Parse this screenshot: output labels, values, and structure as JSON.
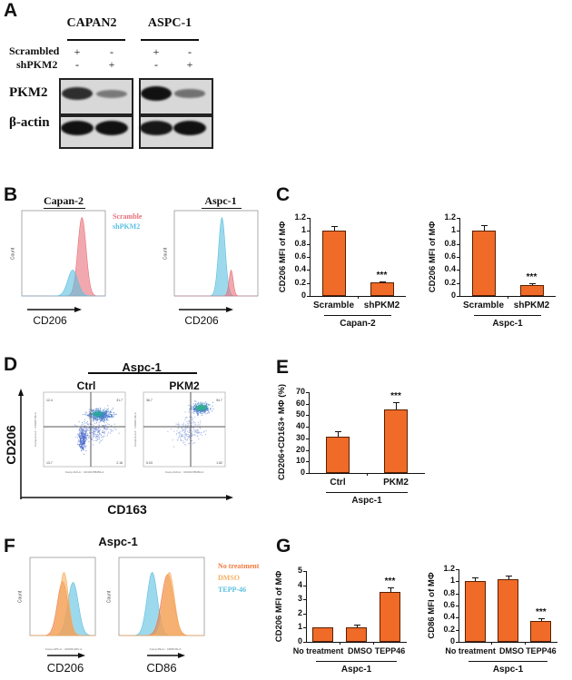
{
  "panels": {
    "A": {
      "label": "A",
      "cell_lines": [
        "CAPAN2",
        "ASPC-1"
      ],
      "row_labels": [
        "Scrambled",
        "shPKM2"
      ],
      "scrambled": [
        "+",
        "-",
        "+",
        "-"
      ],
      "shPKM2": [
        "-",
        "+",
        "-",
        "+"
      ],
      "blots": [
        "PKM2",
        "β-actin"
      ],
      "band_intensity": {
        "PKM2": [
          0.8,
          0.3,
          1.0,
          0.35
        ],
        "beta_actin": [
          1.0,
          1.0,
          0.95,
          1.0
        ]
      }
    },
    "B": {
      "label": "B",
      "titles": [
        "Capan-2",
        "Aspc-1"
      ],
      "legend": [
        "Scramble",
        "shPKM2"
      ],
      "xlabel": "CD206",
      "ylabel": "Count",
      "colors": {
        "Scramble": "#e8707a",
        "shPKM2": "#5bc0e0"
      }
    },
    "C": {
      "label": "C"
    },
    "D": {
      "label": "D",
      "title": "Aspc-1",
      "conditions": [
        "Ctrl",
        "PKM2"
      ],
      "ylabel": "CD206",
      "xlabel": "CD163",
      "plot_xlabel": "Comp-FL6-A :: CD163 PB450-A",
      "plot_ylabel": "Comp-FL3-A :: CD206 PE-A",
      "quadrants": [
        {
          "Q5": "12.4",
          "Q6": "31.7",
          "Q8": "13.7",
          "Q7": "2.16"
        },
        {
          "Q5": "36.7",
          "Q6": "54.7",
          "Q8": "5.03",
          "Q7": "1.52"
        }
      ]
    },
    "E": {
      "label": "E"
    },
    "F": {
      "label": "F",
      "title": "Aspc-1",
      "legend": [
        "No treatment",
        "DMSO",
        "TEPP-46"
      ],
      "xlabels": [
        "CD206",
        "CD86"
      ],
      "plot_xlabels": [
        "Comp-APC-A :: CD206 APC-A",
        "Comp-PE-A :: CD86 PE-A"
      ],
      "ylabel": "Count",
      "colors": {
        "No treatment": "#f07a40",
        "DMSO": "#f5b060",
        "TEPP-46": "#5bc0e0"
      }
    },
    "G": {
      "label": "G"
    }
  },
  "chart_data": [
    {
      "id": "C1",
      "type": "bar",
      "categories": [
        "Scramble",
        "shPKM2"
      ],
      "values": [
        1.0,
        0.21
      ],
      "errors": [
        0.08,
        0.02
      ],
      "significance": [
        "",
        "***"
      ],
      "ylabel": "CD206 MFI of MΦ",
      "group_label": "Capan-2",
      "ylim": [
        0,
        1.2
      ],
      "yticks": [
        "0",
        "0.2",
        "0.4",
        "0.6",
        "0.8",
        "1",
        "1.2"
      ],
      "color": "#f06a28"
    },
    {
      "id": "C2",
      "type": "bar",
      "categories": [
        "Scramble",
        "shPKM2"
      ],
      "values": [
        1.0,
        0.17
      ],
      "errors": [
        0.09,
        0.02
      ],
      "significance": [
        "",
        "***"
      ],
      "ylabel": "CD206 MFI of MΦ",
      "group_label": "Aspc-1",
      "ylim": [
        0,
        1.2
      ],
      "yticks": [
        "0",
        "0.2",
        "0.4",
        "0.6",
        "0.8",
        "1",
        "1.2"
      ],
      "color": "#f06a28"
    },
    {
      "id": "E",
      "type": "bar",
      "categories": [
        "Ctrl",
        "PKM2"
      ],
      "values": [
        31.5,
        55
      ],
      "errors": [
        5,
        6
      ],
      "significance": [
        "",
        "***"
      ],
      "ylabel": "CD206+CD163+ MΦ (%)",
      "group_label": "Aspc-1",
      "ylim": [
        0,
        70
      ],
      "yticks": [
        "0",
        "10",
        "20",
        "30",
        "40",
        "50",
        "60",
        "70"
      ],
      "color": "#f06a28"
    },
    {
      "id": "G1",
      "type": "bar",
      "categories": [
        "No treatment",
        "DMSO",
        "TEPP46"
      ],
      "values": [
        1.0,
        1.03,
        3.5
      ],
      "errors": [
        0.03,
        0.18,
        0.35
      ],
      "significance": [
        "",
        "",
        "***"
      ],
      "ylabel": "CD206 MFI of MΦ",
      "group_label": "Aspc-1",
      "ylim": [
        0,
        5
      ],
      "yticks": [
        "0",
        "1",
        "2",
        "3",
        "4",
        "5"
      ],
      "color": "#f06a28"
    },
    {
      "id": "G2",
      "type": "bar",
      "categories": [
        "No treatment",
        "DMSO",
        "TEPP46"
      ],
      "values": [
        1.0,
        1.03,
        0.35
      ],
      "errors": [
        0.06,
        0.07,
        0.04
      ],
      "significance": [
        "",
        "",
        "***"
      ],
      "ylabel": "CD86 MFI of MΦ",
      "group_label": "Aspc-1",
      "ylim": [
        0,
        1.2
      ],
      "yticks": [
        "0",
        "0.2",
        "0.4",
        "0.6",
        "0.8",
        "1",
        "1.2"
      ],
      "color": "#f06a28"
    }
  ]
}
